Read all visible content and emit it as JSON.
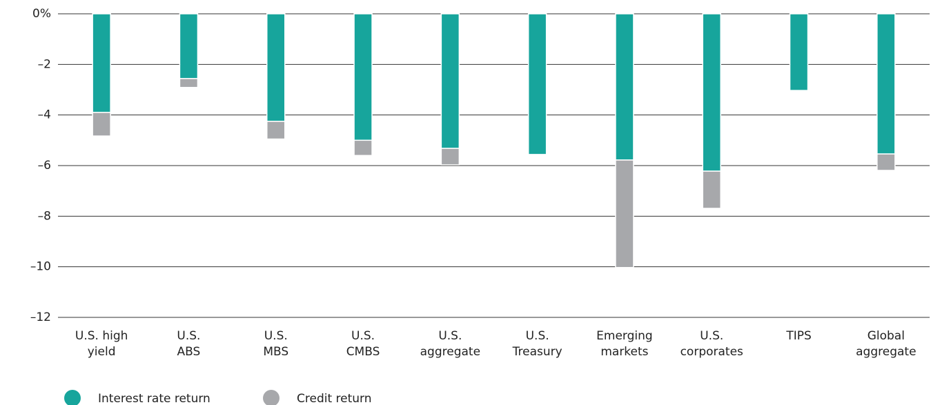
{
  "chart_data": {
    "type": "stacked_bar",
    "categories": [
      "U.S. high\nyield",
      "U.S.\nABS",
      "U.S.\nMBS",
      "U.S.\nCMBS",
      "U.S.\naggregate",
      "U.S.\nTreasury",
      "Emerging\nmarkets",
      "U.S.\ncorporates",
      "TIPS",
      "Global\naggregate"
    ],
    "series": [
      {
        "name": "Interest rate return",
        "color": "#17a59c",
        "values": [
          -3.9,
          -2.56,
          -4.25,
          -5.0,
          -5.32,
          -5.56,
          -5.78,
          -6.22,
          -3.03,
          -5.54
        ]
      },
      {
        "name": "Credit return",
        "color": "#a7a8ab",
        "values": [
          -0.93,
          -0.35,
          -0.7,
          -0.6,
          -0.65,
          0,
          -4.25,
          -1.47,
          0,
          -0.65
        ]
      }
    ],
    "ylim": [
      0,
      -12
    ],
    "yticks": [
      {
        "value": 0,
        "label": "0%"
      },
      {
        "value": -2,
        "label": "–2"
      },
      {
        "value": -4,
        "label": "–4"
      },
      {
        "value": -6,
        "label": "–6"
      },
      {
        "value": -8,
        "label": "–8"
      },
      {
        "value": -10,
        "label": "–10"
      },
      {
        "value": -12,
        "label": "–12"
      }
    ],
    "grid": true
  }
}
